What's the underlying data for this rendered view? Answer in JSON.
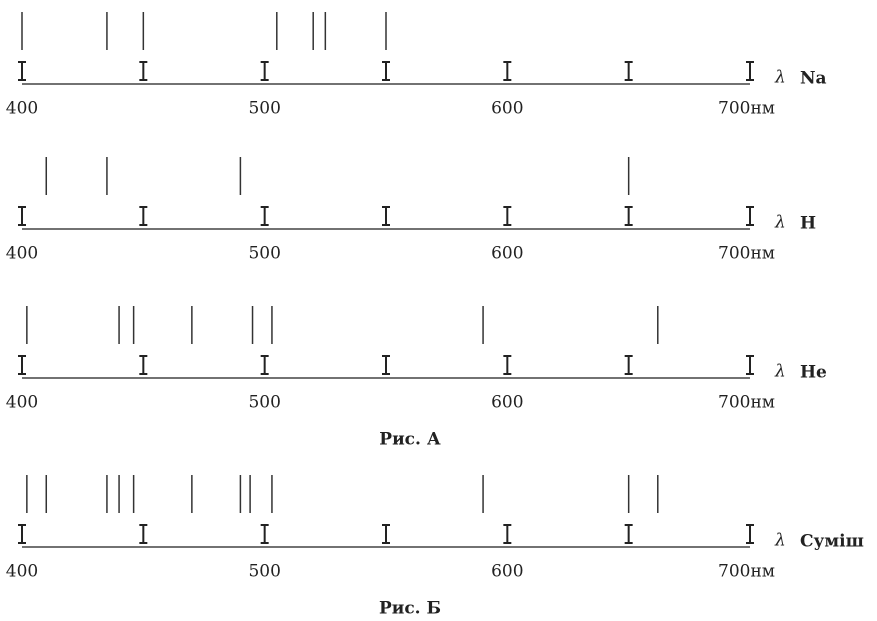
{
  "chart_data": [
    {
      "type": "spectrum",
      "label": "Na",
      "axis_symbol": "λ",
      "xlim": [
        400,
        700
      ],
      "xticks": [
        400,
        500,
        600,
        {
          "value": 700,
          "label": "700нм"
        }
      ],
      "minor_xticks": [
        450,
        550,
        650
      ],
      "lines": [
        400,
        435,
        450,
        505,
        520,
        525,
        550
      ],
      "color": "#333333"
    },
    {
      "type": "spectrum",
      "label": "H",
      "axis_symbol": "λ",
      "xlim": [
        400,
        700
      ],
      "xticks": [
        400,
        500,
        600,
        {
          "value": 700,
          "label": "700нм"
        }
      ],
      "minor_xticks": [
        450,
        550,
        650
      ],
      "lines": [
        410,
        435,
        490,
        650
      ],
      "color": "#333333"
    },
    {
      "type": "spectrum",
      "label": "He",
      "axis_symbol": "λ",
      "xlim": [
        400,
        700
      ],
      "xticks": [
        400,
        500,
        600,
        {
          "value": 700,
          "label": "700нм"
        }
      ],
      "minor_xticks": [
        450,
        550,
        650
      ],
      "lines": [
        402,
        440,
        446,
        470,
        495,
        503,
        590,
        662
      ],
      "color": "#333333",
      "caption": "Рис. А"
    },
    {
      "type": "spectrum",
      "label": "Суміш",
      "axis_symbol": "λ",
      "xlim": [
        400,
        700
      ],
      "xticks": [
        400,
        500,
        600,
        {
          "value": 700,
          "label": "700нм"
        }
      ],
      "minor_xticks": [
        450,
        550,
        650
      ],
      "lines": [
        402,
        410,
        435,
        440,
        446,
        470,
        490,
        494,
        503,
        590,
        650,
        662
      ],
      "color": "#333333",
      "caption": "Рис. Б"
    }
  ]
}
